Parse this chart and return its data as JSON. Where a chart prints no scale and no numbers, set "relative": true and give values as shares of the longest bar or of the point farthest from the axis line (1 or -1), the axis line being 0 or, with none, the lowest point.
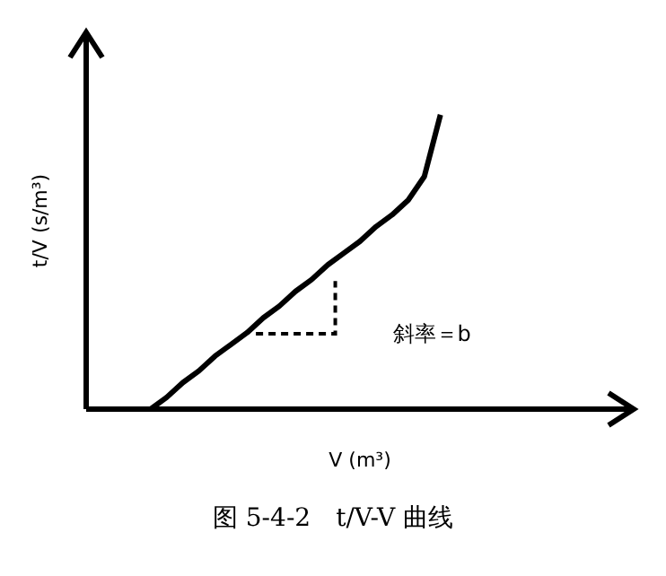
{
  "chart_data": {
    "type": "line",
    "relative": true,
    "title": "图 5-4-2　t/V-V 曲线",
    "xlabel": "V (m³)",
    "ylabel": "t/V (s/m³)",
    "annotations": [
      "斜率＝b"
    ],
    "categories": [
      null,
      null,
      null,
      null,
      null,
      null,
      null,
      null,
      null,
      null,
      null,
      null,
      null,
      null,
      null,
      null,
      null,
      null,
      null,
      null,
      null,
      null,
      null,
      null,
      null,
      null,
      null,
      null,
      null,
      null,
      null,
      null,
      null,
      null,
      null
    ],
    "series": [
      {
        "color": "#000000",
        "values": [
          null,
          null,
          null,
          null,
          0,
          0.04,
          0.09,
          0.13,
          0.18,
          0.22,
          0.26,
          0.31,
          0.35,
          0.4,
          0.44,
          0.49,
          0.53,
          0.57,
          0.62,
          0.66,
          0.71,
          0.79,
          1.0,
          null,
          null,
          null,
          null,
          null,
          null,
          null,
          null,
          null,
          null,
          null,
          null
        ]
      }
    ]
  }
}
